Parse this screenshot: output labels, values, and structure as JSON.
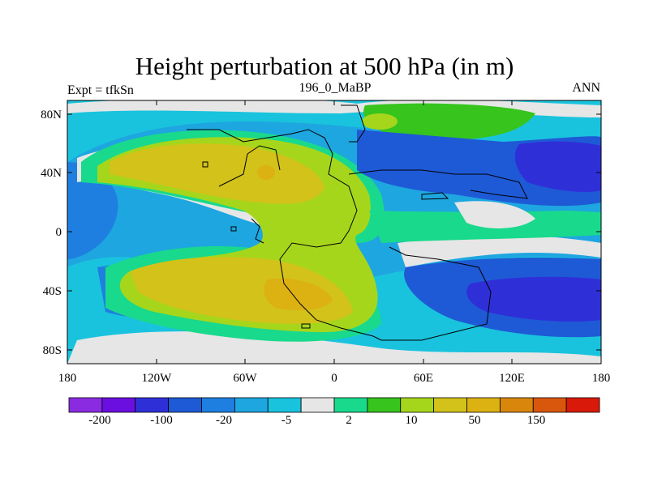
{
  "title": "Height perturbation at 500 hPa (in m)",
  "left_label": "Expt = tfkSn",
  "center_label": "196_0_MaBP",
  "right_label": "ANN",
  "x_ticks": [
    "180",
    "120W",
    "60W",
    "0",
    "60E",
    "120E",
    "180"
  ],
  "y_ticks": [
    "80N",
    "40N",
    "0",
    "40S",
    "80S"
  ],
  "colorbar": {
    "colors": [
      "#8a2be2",
      "#6a0fe0",
      "#2f2fd8",
      "#1e5ad6",
      "#1f7fe0",
      "#1ea6e0",
      "#19c3dd",
      "#e6e6e6",
      "#19d98c",
      "#36c41d",
      "#a6d61c",
      "#d2c21a",
      "#dcb112",
      "#d8870c",
      "#d8570c",
      "#d91a0a"
    ],
    "labels": [
      "-200",
      "-100",
      "-20",
      "-5",
      "2",
      "10",
      "50",
      "150"
    ]
  },
  "map_data": {
    "field": "500 hPa geopotential height perturbation",
    "units": "m",
    "regions": [
      {
        "name": "northern-high-arc",
        "level": "10 to 50"
      },
      {
        "name": "southern-high-arc",
        "level": "10 to 50"
      },
      {
        "name": "equatorial-high",
        "level": "10"
      },
      {
        "name": "east-north-low",
        "level": "-20 to -100"
      },
      {
        "name": "east-south-low",
        "level": "-20 to -100"
      },
      {
        "name": "west-low",
        "level": "-5 to -20"
      }
    ]
  }
}
